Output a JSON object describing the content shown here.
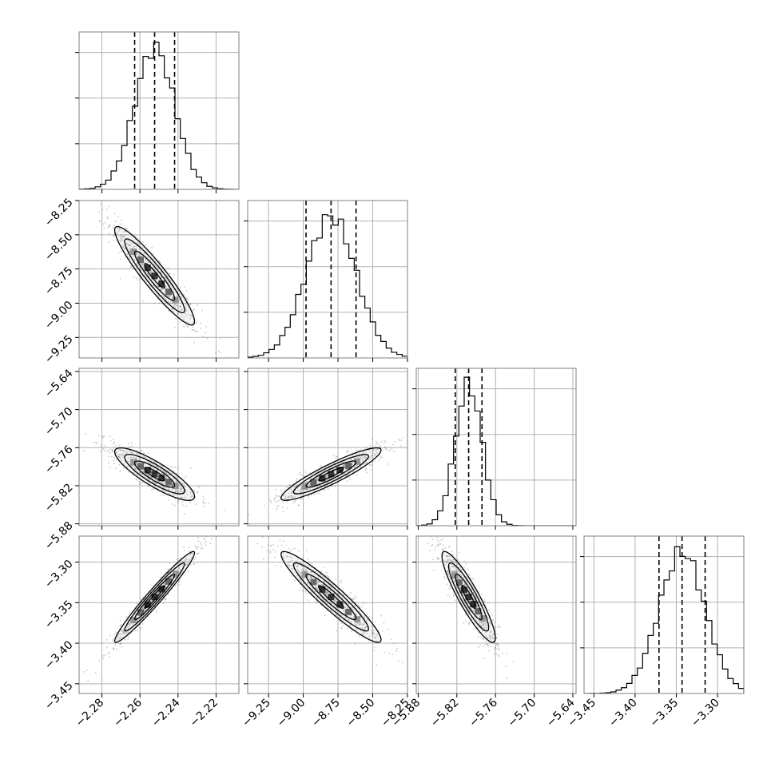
{
  "chart_data": {
    "type": "corner",
    "params": [
      {
        "ticks": [
          -2.28,
          -2.26,
          -2.24,
          -2.22
        ],
        "tick_labels": [
          "−2.28",
          "−2.26",
          "−2.24",
          "−2.22"
        ],
        "range": [
          -2.292,
          -2.208
        ],
        "quantiles": [
          -2.2628,
          -2.2523,
          -2.2418
        ],
        "mean": -2.2523,
        "sd": 0.0105
      },
      {
        "ticks": [
          -9.25,
          -9.0,
          -8.75,
          -8.5,
          -8.25
        ],
        "tick_labels": [
          "−9.25",
          "−9.00",
          "−8.75",
          "−8.50",
          "−8.25"
        ],
        "range": [
          -9.4,
          -8.25
        ],
        "quantiles": [
          -8.98,
          -8.8,
          -8.62
        ],
        "mean": -8.8,
        "sd": 0.18
      },
      {
        "ticks": [
          -5.88,
          -5.82,
          -5.76,
          -5.7,
          -5.64
        ],
        "tick_labels": [
          "−5.88",
          "−5.82",
          "−5.76",
          "−5.70",
          "−5.64"
        ],
        "range": [
          -5.883,
          -5.635
        ],
        "quantiles": [
          -5.8225,
          -5.8017,
          -5.781
        ],
        "mean": -5.8017,
        "sd": 0.0207
      },
      {
        "ticks": [
          -3.45,
          -3.4,
          -3.35,
          -3.3
        ],
        "tick_labels": [
          "−3.45",
          "−3.40",
          "−3.35",
          "−3.30"
        ],
        "range": [
          -3.462,
          -3.268
        ],
        "quantiles": [
          -3.371,
          -3.343,
          -3.315
        ],
        "mean": -3.343,
        "sd": 0.028
      }
    ],
    "correlations": {
      "1-0": -0.93,
      "2-0": -0.85,
      "2-1": 0.91,
      "3-0": 0.97,
      "3-1": -0.94,
      "3-2": -0.9
    },
    "grid": true,
    "colors": {
      "hist": "#000000",
      "quantile": "#000000",
      "contour": "#000000",
      "scatter": "#7f7f7f",
      "grid": "#b0b0b0",
      "frame": "#7f7f7f"
    }
  }
}
